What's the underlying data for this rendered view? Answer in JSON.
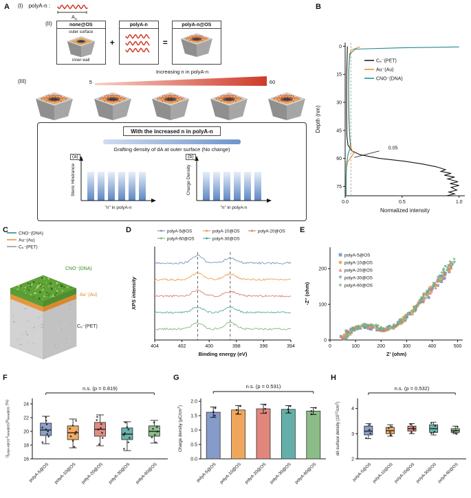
{
  "figure": {
    "panel_labels": {
      "A": "A",
      "B": "B",
      "C": "C",
      "D": "D",
      "E": "E",
      "F": "F",
      "G": "G",
      "H": "H"
    }
  },
  "panelA": {
    "i": "(I)",
    "polya": "polyA-n :",
    "an_main": "A",
    "an_sub": "n",
    "ii": "(II)",
    "box_none": "none@OS",
    "outer_surface": "outer surface",
    "inner_wall": "inner wall",
    "plus": "+",
    "box_polya": "polyA-n",
    "equals": "=",
    "box_result": "polyA-n@OS",
    "iii": "(III)",
    "increasing": "Increasing n in polyA-n",
    "n_start": "5",
    "n_end": "60",
    "increased": "With the increased n in polyA-n",
    "grafting": "Grafting density of dA at outer surface (No change)",
    "a": "(a)",
    "b": "(b)",
    "steric": "Steric Hindrance",
    "charge": "Charge Density",
    "n_axis": "\"n\" in polyA-n"
  },
  "panelC": {
    "legend": [
      {
        "label": "CNO⁻(DNA)",
        "color": "#2e8b8b"
      },
      {
        "label": "Au⁻(Au)",
        "color": "#e8963c"
      },
      {
        "label": "C₆⁻(PET)",
        "color": "#9a9a9a"
      }
    ],
    "cube_labels": [
      {
        "text": "CNO⁻(DNA)",
        "color": "#3c8a1e"
      },
      {
        "text": "Au⁻(Au)",
        "color": "#e08a2e"
      },
      {
        "text": "C₆⁻(PET)",
        "color": "#222222"
      }
    ]
  },
  "chart_data": [
    {
      "id": "B",
      "type": "line",
      "xlabel": "Normalized intensity",
      "ylabel": "Depth (nm)",
      "xlim": [
        0,
        1.05
      ],
      "ylim": [
        -2,
        80
      ],
      "xticks": [
        0,
        0.5,
        1
      ],
      "xtick_labels": [
        "0.0",
        "0.5",
        "1.0"
      ],
      "yticks": [
        0,
        15,
        30,
        45,
        60,
        75
      ],
      "ytick_labels": [
        "0",
        "15",
        "30",
        "45",
        "60",
        "75"
      ],
      "dashed_x": 0.05,
      "annotation": {
        "text": "0.05",
        "text_xy": [
          0.42,
          54.5
        ],
        "line": [
          [
            0.3,
            56
          ],
          [
            0.08,
            59.5
          ]
        ]
      },
      "series": [
        {
          "name": "C₆⁻(PET)",
          "color": "#111111",
          "points": [
            [
              0.02,
              0
            ],
            [
              0.013,
              15
            ],
            [
              0.012,
              35
            ],
            [
              0.015,
              48
            ],
            [
              0.025,
              53
            ],
            [
              0.06,
              56
            ],
            [
              0.13,
              58
            ],
            [
              0.3,
              60
            ],
            [
              0.52,
              61.5
            ],
            [
              0.68,
              63
            ],
            [
              0.8,
              64.5
            ],
            [
              0.88,
              66
            ],
            [
              0.84,
              67
            ],
            [
              0.93,
              68
            ],
            [
              0.87,
              69
            ],
            [
              0.96,
              70
            ],
            [
              0.9,
              71
            ],
            [
              0.99,
              72.5
            ],
            [
              0.92,
              73.5
            ],
            [
              1.0,
              74.5
            ],
            [
              0.93,
              75.5
            ],
            [
              0.98,
              77
            ],
            [
              0.91,
              78
            ],
            [
              0.96,
              79
            ],
            [
              0.89,
              80
            ]
          ]
        },
        {
          "name": "Au⁻(Au)",
          "color": "#e8882a",
          "points": [
            [
              0.13,
              0.3
            ],
            [
              0.05,
              2
            ],
            [
              0.035,
              8
            ],
            [
              0.03,
              18
            ],
            [
              0.032,
              30
            ],
            [
              0.036,
              42
            ],
            [
              0.042,
              50
            ],
            [
              0.055,
              55
            ],
            [
              0.075,
              57.5
            ],
            [
              0.05,
              59.5
            ],
            [
              0.02,
              62
            ],
            [
              0.01,
              66
            ],
            [
              0.008,
              73
            ],
            [
              0.008,
              80
            ]
          ]
        },
        {
          "name": "CNO⁻(DNA)",
          "color": "#1f8a8a",
          "points": [
            [
              1.0,
              0.3
            ],
            [
              0.5,
              0.8
            ],
            [
              0.09,
              1.5
            ],
            [
              0.04,
              4
            ],
            [
              0.032,
              12
            ],
            [
              0.03,
              25
            ],
            [
              0.032,
              38
            ],
            [
              0.038,
              47
            ],
            [
              0.045,
              52
            ],
            [
              0.04,
              55
            ],
            [
              0.025,
              58
            ],
            [
              0.012,
              63
            ],
            [
              0.008,
              70
            ],
            [
              0.008,
              80
            ]
          ]
        }
      ]
    },
    {
      "id": "D",
      "type": "spectra",
      "xlabel": "Binding energy (eV)",
      "ylabel": "XPS intensity",
      "xlim": [
        404,
        394
      ],
      "xticks": [
        404,
        402,
        400,
        398,
        396,
        394
      ],
      "xtick_labels": [
        "404",
        "402",
        "400",
        "398",
        "396",
        "394"
      ],
      "dashed_x": [
        400.85,
        398.45
      ],
      "series": [
        {
          "name": "polyA-5@OS",
          "color": "#7b93c4",
          "peaks": [
            [
              400.85,
              11,
              0.55
            ],
            [
              398.45,
              7,
              0.6
            ]
          ]
        },
        {
          "name": "polyA-10@OS",
          "color": "#eda04f",
          "peaks": [
            [
              400.85,
              10,
              0.55
            ],
            [
              398.45,
              8,
              0.6
            ]
          ]
        },
        {
          "name": "polyA-20@OS",
          "color": "#dd7c72",
          "peaks": [
            [
              400.85,
              9,
              0.55
            ],
            [
              398.45,
              7,
              0.6
            ]
          ]
        },
        {
          "name": "polyA-30@OS",
          "color": "#57a8a2",
          "peaks": [
            [
              400.85,
              8,
              0.55
            ],
            [
              398.45,
              8,
              0.6
            ]
          ]
        },
        {
          "name": "polyA-60@OS",
          "color": "#82b77e",
          "peaks": [
            [
              400.85,
              9,
              0.55
            ],
            [
              398.45,
              9,
              0.6
            ]
          ]
        }
      ],
      "legend_rows": [
        [
          0,
          1,
          2
        ],
        [
          4,
          3
        ]
      ]
    },
    {
      "id": "E",
      "type": "scatter",
      "xlabel": "Z' (ohm)",
      "ylabel": "-Z'' (ohm)",
      "xlim": [
        0,
        520
      ],
      "ylim": [
        0,
        260
      ],
      "xticks": [
        0,
        100,
        200,
        300,
        400,
        500
      ],
      "xtick_labels": [
        "0",
        "100",
        "200",
        "300",
        "400",
        "500"
      ],
      "yticks": [
        0,
        100,
        200
      ],
      "ytick_labels": [
        "0",
        "100",
        "200"
      ],
      "base_curve": [
        [
          55,
          4
        ],
        [
          62,
          10
        ],
        [
          70,
          17
        ],
        [
          80,
          24
        ],
        [
          92,
          30
        ],
        [
          105,
          35
        ],
        [
          118,
          38
        ],
        [
          132,
          40
        ],
        [
          146,
          40
        ],
        [
          160,
          38
        ],
        [
          174,
          35
        ],
        [
          188,
          32
        ],
        [
          202,
          30
        ],
        [
          216,
          30
        ],
        [
          230,
          32
        ],
        [
          244,
          36
        ],
        [
          258,
          42
        ],
        [
          272,
          49
        ],
        [
          286,
          57
        ],
        [
          300,
          66
        ],
        [
          314,
          76
        ],
        [
          328,
          86
        ],
        [
          342,
          97
        ],
        [
          356,
          108
        ],
        [
          370,
          120
        ],
        [
          384,
          132
        ],
        [
          398,
          144
        ],
        [
          412,
          156
        ],
        [
          426,
          168
        ],
        [
          440,
          180
        ],
        [
          452,
          192
        ],
        [
          464,
          203
        ],
        [
          474,
          214
        ]
      ],
      "series": [
        {
          "name": "polyA-5@OS",
          "color": "#7b93c4",
          "marker": "square",
          "scale": 0.93
        },
        {
          "name": "polyA-10@OS",
          "color": "#eda04f",
          "marker": "circle",
          "scale": 0.97
        },
        {
          "name": "polyA-20@OS",
          "color": "#dd7c72",
          "marker": "triangle",
          "scale": 1.0
        },
        {
          "name": "polyA-30@OS",
          "color": "#57a8a2",
          "marker": "triangle-down",
          "scale": 1.03
        },
        {
          "name": "polyA-60@OS",
          "color": "#82b77e",
          "marker": "diamond",
          "scale": 1.07
        }
      ]
    },
    {
      "id": "F",
      "type": "box",
      "title": "n.s. (p = 0.819)",
      "ylabel_parts": [
        [
          "(I",
          0
        ],
        [
          "polyA-n@OS",
          1
        ],
        [
          "-I",
          0
        ],
        [
          "none@OS",
          1
        ],
        [
          ")/I",
          0
        ],
        [
          "none@OS",
          1
        ],
        [
          " (%)",
          0
        ]
      ],
      "ylim": [
        16,
        24.8
      ],
      "yticks": [
        16,
        18,
        20,
        22,
        24
      ],
      "ytick_labels": [
        "16",
        "18",
        "20",
        "22",
        "24"
      ],
      "categories": [
        "polyA-5@OS",
        "polyA-10@OS",
        "polyA-20@OS",
        "polyA-30@OS",
        "polyA-60@OS"
      ],
      "colors": [
        "#7b93c4",
        "#eda04f",
        "#dd7c72",
        "#57a8a2",
        "#82b77e"
      ],
      "boxes": [
        {
          "whislo": 18.2,
          "q1": 19.4,
          "med": 20.2,
          "q3": 21.2,
          "whishi": 22.2,
          "points": [
            18.5,
            19.2,
            19.6,
            20.0,
            20.3,
            20.6,
            21.0,
            21.5,
            22.0
          ]
        },
        {
          "whislo": 17.6,
          "q1": 18.8,
          "med": 19.8,
          "q3": 20.8,
          "whishi": 21.8,
          "points": [
            17.8,
            18.6,
            19.2,
            19.7,
            20.0,
            20.4,
            20.9,
            21.5
          ]
        },
        {
          "whislo": 17.9,
          "q1": 19.3,
          "med": 20.3,
          "q3": 21.3,
          "whishi": 22.4,
          "points": [
            18.1,
            19.0,
            19.8,
            20.2,
            20.5,
            21.0,
            21.6,
            22.2
          ]
        },
        {
          "whislo": 17.2,
          "q1": 18.8,
          "med": 19.6,
          "q3": 20.5,
          "whishi": 21.4,
          "points": [
            17.4,
            18.5,
            19.0,
            19.4,
            19.8,
            20.2,
            20.7,
            21.2
          ]
        },
        {
          "whislo": 18.3,
          "q1": 19.3,
          "med": 20.0,
          "q3": 20.8,
          "whishi": 21.6,
          "points": [
            18.5,
            19.2,
            19.6,
            19.9,
            20.3,
            20.7,
            21.3
          ]
        }
      ]
    },
    {
      "id": "G",
      "type": "bar",
      "title": "n.s. (p = 0.531)",
      "ylabel_parts": [
        [
          "Charge density (μC/cm",
          0
        ],
        [
          "2",
          2
        ],
        [
          ")",
          0
        ]
      ],
      "ylim": [
        0,
        2.1
      ],
      "yticks": [
        0,
        0.5,
        1,
        1.5,
        2
      ],
      "ytick_labels": [
        "0.0",
        "0.5",
        "1.0",
        "1.5",
        "2.0"
      ],
      "categories": [
        "polyA-5@OS",
        "polyA-10@OS",
        "polyA-20@OS",
        "polyA-30@OS",
        "polyA-60@OS"
      ],
      "colors": [
        "#7b93c4",
        "#eda04f",
        "#dd7c72",
        "#57a8a2",
        "#82b77e"
      ],
      "values": [
        1.62,
        1.7,
        1.74,
        1.72,
        1.66
      ],
      "errors": [
        0.18,
        0.15,
        0.16,
        0.13,
        0.12
      ],
      "points": [
        [
          1.5,
          1.63,
          1.76
        ],
        [
          1.57,
          1.7,
          1.83
        ],
        [
          1.6,
          1.74,
          1.88
        ],
        [
          1.62,
          1.72,
          1.83
        ],
        [
          1.55,
          1.66,
          1.77
        ]
      ]
    },
    {
      "id": "H",
      "type": "box",
      "title": "n.s. (p = 0.532)",
      "ylabel_parts": [
        [
          "dA surface density (10",
          0
        ],
        [
          "12",
          2
        ],
        [
          "/cm",
          0
        ],
        [
          "2",
          2
        ],
        [
          ")",
          0
        ]
      ],
      "ylim": [
        2,
        4.4
      ],
      "yticks": [
        2,
        3,
        4
      ],
      "ytick_labels": [
        "2",
        "3",
        "4"
      ],
      "categories": [
        "polyA-5@OS",
        "polyA-10@OS",
        "polyA-20@OS",
        "polyA-30@OS",
        "polyA-60@OS"
      ],
      "colors": [
        "#7b93c4",
        "#eda04f",
        "#dd7c72",
        "#57a8a2",
        "#82b77e"
      ],
      "boxes": [
        {
          "whislo": 2.8,
          "q1": 2.95,
          "med": 3.1,
          "q3": 3.3,
          "whishi": 3.4,
          "points": [
            2.85,
            3.0,
            3.15,
            3.35
          ]
        },
        {
          "whislo": 2.9,
          "q1": 3.0,
          "med": 3.12,
          "q3": 3.25,
          "whishi": 3.35,
          "points": [
            2.95,
            3.05,
            3.2,
            3.3
          ]
        },
        {
          "whislo": 3.0,
          "q1": 3.1,
          "med": 3.2,
          "q3": 3.3,
          "whishi": 3.4,
          "points": [
            3.05,
            3.15,
            3.25,
            3.35
          ]
        },
        {
          "whislo": 2.95,
          "q1": 3.05,
          "med": 3.2,
          "q3": 3.35,
          "whishi": 3.45,
          "points": [
            3.0,
            3.1,
            3.3,
            3.4
          ]
        },
        {
          "whislo": 3.0,
          "q1": 3.05,
          "med": 3.12,
          "q3": 3.2,
          "whishi": 3.3,
          "points": [
            3.02,
            3.08,
            3.15,
            3.25
          ]
        }
      ]
    }
  ]
}
